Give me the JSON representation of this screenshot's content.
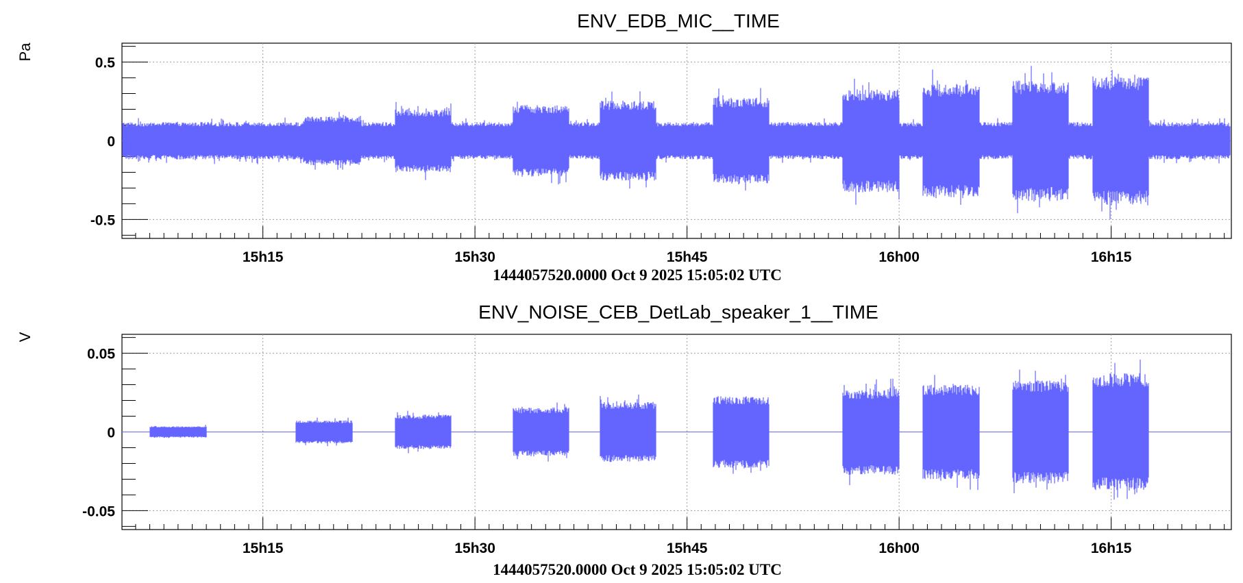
{
  "chart_data": [
    {
      "type": "line",
      "title": "ENV_EDB_MIC__TIME",
      "ylabel": "Pa",
      "xlabel": "1444057520.0000 Oct 9 2025 15:05:02 UTC",
      "xlim": [
        "15:05:02",
        "16:23:30"
      ],
      "ylim": [
        -0.62,
        0.62
      ],
      "xticks": [
        "15h15",
        "15h30",
        "15h45",
        "16h00",
        "16h15"
      ],
      "yticks": [
        "0.5",
        "0",
        "-0.5"
      ],
      "grid": true,
      "color": "#6464ff",
      "baseline_amplitude": 0.13,
      "bursts": [
        {
          "start": "15:17:50",
          "end": "15:21:55",
          "amplitude": 0.17
        },
        {
          "start": "15:24:20",
          "end": "15:28:20",
          "amplitude": 0.22
        },
        {
          "start": "15:32:40",
          "end": "15:36:40",
          "amplitude": 0.25
        },
        {
          "start": "15:38:50",
          "end": "15:42:50",
          "amplitude": 0.28
        },
        {
          "start": "15:46:50",
          "end": "15:50:50",
          "amplitude": 0.3
        },
        {
          "start": "15:56:00",
          "end": "16:00:00",
          "amplitude": 0.36
        },
        {
          "start": "16:01:40",
          "end": "16:05:40",
          "amplitude": 0.4
        },
        {
          "start": "16:08:00",
          "end": "16:12:00",
          "amplitude": 0.42
        },
        {
          "start": "16:13:40",
          "end": "16:17:40",
          "amplitude": 0.45
        }
      ]
    },
    {
      "type": "line",
      "title": "ENV_NOISE_CEB_DetLab_speaker_1__TIME",
      "ylabel": "V",
      "xlabel": "1444057520.0000 Oct 9 2025 15:05:02 UTC",
      "xlim": [
        "15:05:02",
        "16:23:30"
      ],
      "ylim": [
        -0.062,
        0.062
      ],
      "xticks": [
        "15h15",
        "15h30",
        "15h45",
        "16h00",
        "16h15"
      ],
      "yticks": [
        "0.05",
        "0",
        "-0.05"
      ],
      "grid": true,
      "color": "#6464ff",
      "baseline_amplitude": 0,
      "bursts": [
        {
          "start": "15:07:00",
          "end": "15:11:00",
          "amplitude": 0.004
        },
        {
          "start": "15:17:20",
          "end": "15:21:20",
          "amplitude": 0.008
        },
        {
          "start": "15:24:20",
          "end": "15:28:20",
          "amplitude": 0.012
        },
        {
          "start": "15:32:40",
          "end": "15:36:40",
          "amplitude": 0.017
        },
        {
          "start": "15:38:50",
          "end": "15:42:50",
          "amplitude": 0.021
        },
        {
          "start": "15:46:50",
          "end": "15:50:50",
          "amplitude": 0.025
        },
        {
          "start": "15:56:00",
          "end": "16:00:00",
          "amplitude": 0.03
        },
        {
          "start": "16:01:40",
          "end": "16:05:40",
          "amplitude": 0.033
        },
        {
          "start": "16:08:00",
          "end": "16:12:00",
          "amplitude": 0.036
        },
        {
          "start": "16:13:40",
          "end": "16:17:40",
          "amplitude": 0.041
        }
      ]
    }
  ]
}
